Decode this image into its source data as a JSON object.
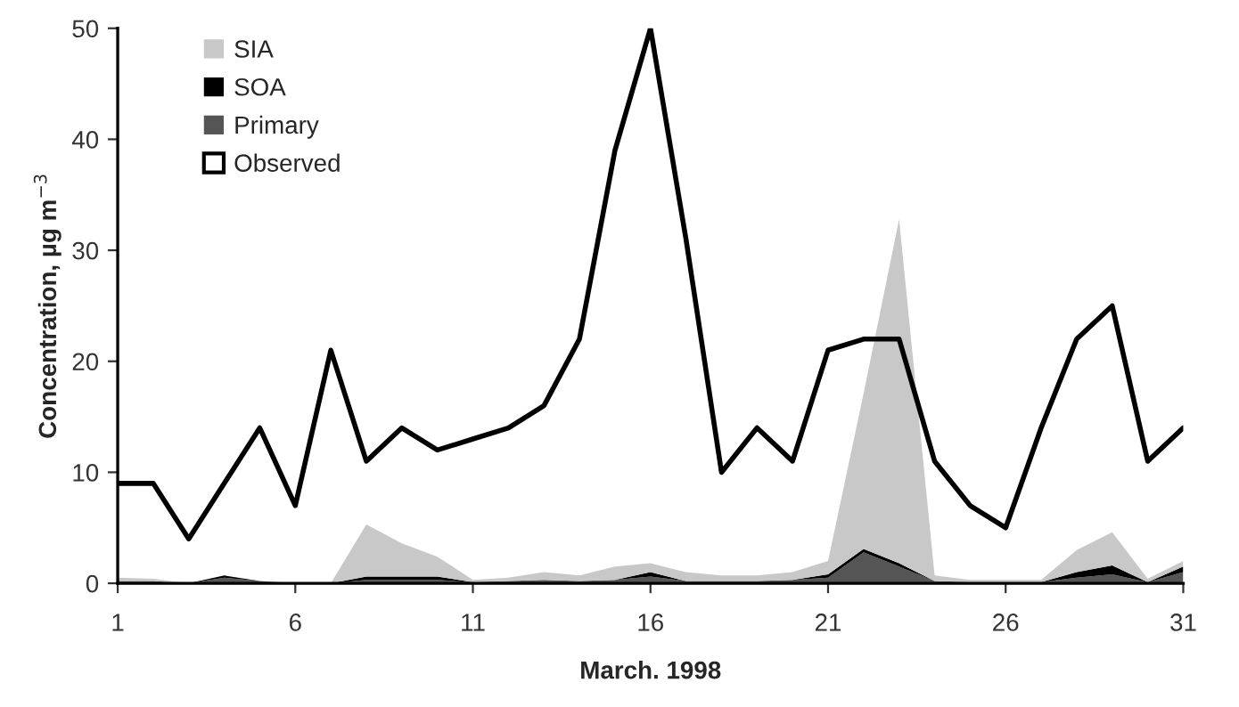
{
  "chart_data": {
    "type": "area",
    "stacked": true,
    "xlabel": "March. 1998",
    "ylabel": "Concentration, µg m$^{−3}$",
    "x": [
      1,
      2,
      3,
      4,
      5,
      6,
      7,
      8,
      9,
      10,
      11,
      12,
      13,
      14,
      15,
      16,
      17,
      18,
      19,
      20,
      21,
      22,
      23,
      24,
      25,
      26,
      27,
      28,
      29,
      30,
      31
    ],
    "xlim": [
      1,
      31
    ],
    "xticks": [
      1,
      6,
      11,
      16,
      21,
      26,
      31
    ],
    "ylim": [
      0,
      50
    ],
    "yticks": [
      0,
      10,
      20,
      30,
      40,
      50
    ],
    "grid": false,
    "legend": "top left",
    "series": [
      {
        "name": "Primary",
        "color": "#555555",
        "values": [
          0.2,
          0.2,
          0,
          0.5,
          0.2,
          0,
          0,
          0.3,
          0.3,
          0.3,
          0.1,
          0.2,
          0.3,
          0.2,
          0.3,
          0.6,
          0.2,
          0.2,
          0.2,
          0.3,
          0.5,
          2.8,
          1.5,
          0.2,
          0.1,
          0.1,
          0.1,
          0.5,
          0.8,
          0.1,
          1
        ]
      },
      {
        "name": "SOA",
        "color": "#000000",
        "values": [
          0,
          0,
          0,
          0.2,
          0,
          0,
          0,
          0.3,
          0.3,
          0.3,
          0,
          0,
          0,
          0,
          0,
          0.4,
          0,
          0,
          0,
          0,
          0.3,
          0.3,
          0.3,
          0,
          0,
          0,
          0,
          0.5,
          0.8,
          0,
          0.5
        ]
      },
      {
        "name": "SIA",
        "color": "#c8c8c8",
        "values": [
          0.3,
          0.2,
          0,
          0,
          0,
          0,
          0,
          4.7,
          3,
          1.8,
          0.2,
          0.3,
          0.7,
          0.5,
          1.2,
          0.8,
          0.8,
          0.5,
          0.5,
          0.7,
          1.2,
          14,
          31,
          0.5,
          0.2,
          0.2,
          0.2,
          2,
          3,
          0.3,
          0.5
        ]
      },
      {
        "name": "Observed",
        "type": "line",
        "color": "#000000",
        "values": [
          9,
          9,
          4,
          9,
          14,
          7,
          21,
          11,
          14,
          12,
          13,
          14,
          16,
          22,
          39,
          50,
          31,
          10,
          14,
          11,
          21,
          22,
          22,
          11,
          7,
          5,
          14,
          22,
          25,
          11,
          14
        ]
      }
    ]
  }
}
